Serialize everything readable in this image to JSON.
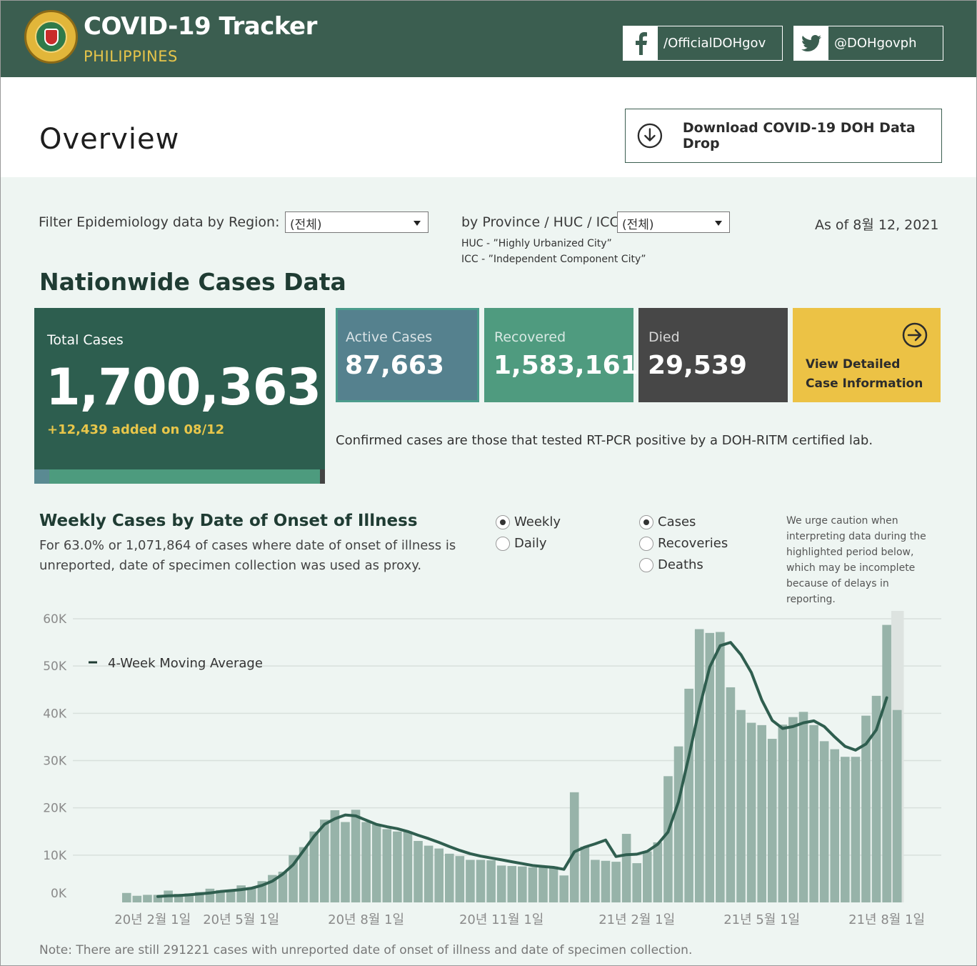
{
  "header": {
    "title": "COVID-19 Tracker",
    "subtitle": "PHILIPPINES",
    "facebook": "/OfficialDOHgov",
    "twitter": "@DOHgovph"
  },
  "overview": {
    "title": "Overview",
    "download_label": "Download COVID-19 DOH Data Drop"
  },
  "filters": {
    "region_label": "Filter Epidemiology data by Region:",
    "region_value": "(전체)",
    "province_label": "by Province / HUC / ICC:",
    "province_value": "(전체)",
    "huc_note": "HUC - ”Highly Urbanized City”",
    "icc_note": "ICC - ”Independent Component City”",
    "as_of": "As of 8월 12, 2021"
  },
  "nationwide": {
    "heading": "Nationwide Cases Data",
    "total_label": "Total Cases",
    "total_value": "1,700,363",
    "added": "+12,439 added on 08/12",
    "active_label": "Active Cases",
    "active_value": "87,663",
    "recovered_label": "Recovered",
    "recovered_value": "1,583,161",
    "died_label": "Died",
    "died_value": "29,539",
    "view_label": "View Detailed Case Information",
    "confirmed_note": "Confirmed cases are those that tested RT-PCR positive by a DOH-RITM certified lab."
  },
  "weekly": {
    "title": "Weekly Cases by Date of Onset of Illness",
    "description": "For 63.0% or 1,071,864 of cases where date of onset of illness is unreported, date of specimen collection was used as proxy.",
    "period_options": [
      {
        "label": "Weekly",
        "selected": true
      },
      {
        "label": "Daily",
        "selected": false
      }
    ],
    "metric_options": [
      {
        "label": "Cases",
        "selected": true
      },
      {
        "label": "Recoveries",
        "selected": false
      },
      {
        "label": "Deaths",
        "selected": false
      }
    ],
    "caution": "We urge caution when interpreting data during the highlighted period below, which may be incomplete because of delays in reporting.",
    "legend_label": "4-Week Moving Average"
  },
  "colors": {
    "bar": "#97b3a9",
    "line": "#2f5e4f",
    "highlight": "#dde3e0",
    "grid": "#d8e0dc"
  },
  "chart_data": {
    "type": "bar",
    "title": "",
    "xlabel": "",
    "ylabel": "",
    "ylim": [
      0,
      60000
    ],
    "y_ticks": [
      "0K",
      "10K",
      "20K",
      "30K",
      "40K",
      "50K",
      "60K"
    ],
    "x_ticks": [
      "20년 2월 1일",
      "20년 5월 1일",
      "20년 8월 1일",
      "20년 11월 1일",
      "21년 2월 1일",
      "21년 5월 1일",
      "21년 8월 1일"
    ],
    "x_tick_week_index": [
      2.5,
      11,
      23,
      36,
      49,
      61,
      73
    ],
    "highlighted_period_last_weeks": 1,
    "series": [
      {
        "name": "Cases",
        "kind": "bar",
        "values": [
          2000,
          1400,
          1600,
          1600,
          2500,
          1800,
          1900,
          2200,
          2900,
          2600,
          2300,
          3600,
          3200,
          4500,
          5800,
          6500,
          10000,
          11700,
          15000,
          17500,
          19500,
          17000,
          19600,
          17000,
          16500,
          15500,
          15000,
          15000,
          13000,
          12000,
          11400,
          10300,
          9800,
          9000,
          9000,
          8900,
          7800,
          7700,
          7600,
          7400,
          7400,
          7600,
          5700,
          23300,
          11800,
          9000,
          8800,
          8600,
          14500,
          8300,
          10800,
          12700,
          26700,
          33000,
          45200,
          57800,
          57000,
          57200,
          45500,
          40700,
          38000,
          37500,
          34600,
          37600,
          39200,
          40300,
          37500,
          34100,
          32400,
          30800,
          30800,
          39500,
          43700,
          58700,
          40700
        ]
      },
      {
        "name": "4-Week Moving Average",
        "kind": "line",
        "values": [
          null,
          null,
          null,
          1250,
          1400,
          1450,
          1600,
          1800,
          2000,
          2300,
          2500,
          2700,
          3000,
          3600,
          4500,
          6000,
          8000,
          11000,
          14000,
          16500,
          17700,
          18500,
          18300,
          17400,
          16500,
          16000,
          15600,
          15000,
          14200,
          13500,
          12700,
          11800,
          11000,
          10300,
          9800,
          9400,
          9000,
          8600,
          8200,
          7800,
          7600,
          7400,
          7000,
          10700,
          11700,
          12400,
          13200,
          9700,
          10100,
          10200,
          10800,
          12300,
          14900,
          21300,
          30900,
          41000,
          49800,
          54300,
          55000,
          52400,
          48600,
          42800,
          38500,
          36800,
          37200,
          38000,
          38400,
          37200,
          35000,
          33000,
          32200,
          33500,
          36500,
          43300,
          null
        ]
      }
    ]
  },
  "footnote": "Note: There are still 291221 cases with unreported date of onset of illness and date of specimen collection."
}
